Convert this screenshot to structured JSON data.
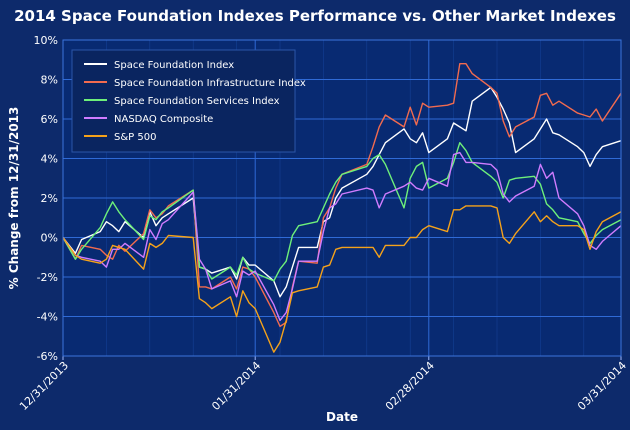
{
  "chart_data": {
    "type": "line",
    "title": "2014 Space Foundation Indexes Performance vs. Other Market Indexes",
    "xlabel": "Date",
    "ylabel": "% Change from 12/31/2013",
    "xlim": [
      "2013-12-31",
      "2014-03-31"
    ],
    "ylim": [
      -6,
      10
    ],
    "yticks": [
      -6,
      -4,
      -2,
      0,
      2,
      4,
      6,
      8,
      10
    ],
    "ytick_labels": [
      "-6%",
      "-4%",
      "-2%",
      "0%",
      "2%",
      "4%",
      "6%",
      "8%",
      "10%"
    ],
    "xticks": [
      "2013-12-31",
      "2014-01-31",
      "2014-02-28",
      "2014-03-31"
    ],
    "xtick_labels": [
      "12/31/2013",
      "01/31/2014",
      "02/28/2014",
      "03/31/2014"
    ],
    "grid": true,
    "legend_position": "top-left",
    "background_color": "#0d2a6b",
    "plot_color": "#082a72",
    "grid_color": "#2f6ad6",
    "x": [
      "2013-12-31",
      "2014-01-02",
      "2014-01-03",
      "2014-01-06",
      "2014-01-07",
      "2014-01-08",
      "2014-01-09",
      "2014-01-10",
      "2014-01-13",
      "2014-01-14",
      "2014-01-15",
      "2014-01-16",
      "2014-01-17",
      "2014-01-21",
      "2014-01-22",
      "2014-01-23",
      "2014-01-24",
      "2014-01-27",
      "2014-01-28",
      "2014-01-29",
      "2014-01-30",
      "2014-01-31",
      "2014-02-03",
      "2014-02-04",
      "2014-02-05",
      "2014-02-06",
      "2014-02-07",
      "2014-02-10",
      "2014-02-11",
      "2014-02-12",
      "2014-02-13",
      "2014-02-14",
      "2014-02-18",
      "2014-02-19",
      "2014-02-20",
      "2014-02-21",
      "2014-02-24",
      "2014-02-25",
      "2014-02-26",
      "2014-02-27",
      "2014-02-28",
      "2014-03-03",
      "2014-03-04",
      "2014-03-05",
      "2014-03-06",
      "2014-03-07",
      "2014-03-10",
      "2014-03-11",
      "2014-03-12",
      "2014-03-13",
      "2014-03-14",
      "2014-03-17",
      "2014-03-18",
      "2014-03-19",
      "2014-03-20",
      "2014-03-21",
      "2014-03-24",
      "2014-03-25",
      "2014-03-26",
      "2014-03-27",
      "2014-03-28",
      "2014-03-31"
    ],
    "series": [
      {
        "name": "Space Foundation Index",
        "color": "#ffffff",
        "values": [
          0,
          -0.8,
          -0.1,
          0.3,
          0.8,
          0.6,
          0.3,
          0.8,
          0,
          1.3,
          0.6,
          1.0,
          1.2,
          2.0,
          -1.5,
          -1.6,
          -1.8,
          -1.5,
          -2.1,
          -1.0,
          -1.4,
          -1.4,
          -2.2,
          -3.0,
          -2.5,
          -1.5,
          -0.5,
          -0.5,
          0.8,
          1.0,
          2.0,
          2.5,
          3.2,
          3.6,
          4.2,
          4.8,
          5.5,
          5.0,
          4.8,
          5.3,
          4.3,
          5.0,
          5.8,
          5.6,
          5.4,
          6.9,
          7.6,
          7.1,
          6.5,
          5.8,
          4.3,
          5.0,
          5.5,
          6.0,
          5.3,
          5.2,
          4.6,
          4.3,
          3.6,
          4.2,
          4.6,
          4.9
        ]
      },
      {
        "name": "Space Foundation Infrastructure Index",
        "color": "#f26b4f",
        "values": [
          0,
          -1.1,
          -0.4,
          -0.6,
          -0.9,
          -1.1,
          -0.4,
          -0.7,
          0.2,
          1.4,
          1.0,
          1.2,
          1.6,
          2.4,
          -2.5,
          -2.5,
          -2.6,
          -2.0,
          -2.6,
          -1.5,
          -1.6,
          -2.0,
          -3.8,
          -4.5,
          -4.3,
          -2.5,
          -1.2,
          -1.3,
          1.0,
          1.5,
          2.5,
          3.2,
          3.7,
          4.6,
          5.6,
          6.2,
          5.6,
          6.6,
          5.7,
          6.8,
          6.6,
          6.7,
          6.8,
          8.8,
          8.8,
          8.3,
          7.6,
          7.3,
          5.9,
          5.1,
          5.6,
          6.1,
          7.2,
          7.3,
          6.7,
          6.9,
          6.3,
          6.2,
          6.1,
          6.5,
          5.9,
          7.3
        ]
      },
      {
        "name": "Space Foundation Services Index",
        "color": "#6ef07a",
        "values": [
          0,
          -1.1,
          -0.6,
          0.5,
          1.2,
          1.8,
          1.3,
          0.9,
          -0.1,
          1.1,
          0.9,
          1.3,
          1.5,
          2.4,
          -1.5,
          -1.6,
          -2.1,
          -1.5,
          -1.9,
          -1.0,
          -1.6,
          -1.8,
          -2.2,
          -1.6,
          -1.2,
          0.1,
          0.6,
          0.8,
          1.5,
          2.2,
          2.8,
          3.2,
          3.6,
          4.0,
          4.2,
          3.7,
          1.5,
          3.0,
          3.6,
          3.8,
          2.5,
          3.0,
          3.8,
          4.8,
          4.4,
          3.8,
          3.1,
          2.8,
          2.0,
          2.9,
          3.0,
          3.1,
          2.7,
          1.7,
          1.4,
          1.0,
          0.8,
          0.2,
          -0.3,
          0.1,
          0.4,
          0.9
        ]
      },
      {
        "name": "NASDAQ Composite",
        "color": "#d07cff",
        "values": [
          0,
          -0.9,
          -1.0,
          -1.2,
          -1.5,
          -0.6,
          -0.6,
          -0.3,
          -1.0,
          0.4,
          -0.1,
          0.7,
          0.9,
          2.3,
          -1.1,
          -1.6,
          -2.6,
          -2.2,
          -3.0,
          -1.7,
          -1.9,
          -1.7,
          -3.4,
          -4.2,
          -3.8,
          -2.6,
          -1.2,
          -1.2,
          0.3,
          1.5,
          1.7,
          2.2,
          2.5,
          2.4,
          1.5,
          2.2,
          2.6,
          2.8,
          2.5,
          2.4,
          3.0,
          2.6,
          4.2,
          4.3,
          3.8,
          3.8,
          3.7,
          3.4,
          2.2,
          1.8,
          2.1,
          2.6,
          3.7,
          3.0,
          3.3,
          2.0,
          1.2,
          0.6,
          -0.4,
          -0.6,
          -0.2,
          0.6
        ]
      },
      {
        "name": "S&P 500",
        "color": "#f5a21a",
        "values": [
          0,
          -0.9,
          -1.1,
          -1.3,
          -1.1,
          -0.4,
          -0.5,
          -0.6,
          -1.6,
          -0.3,
          -0.5,
          -0.3,
          0.1,
          0,
          -3.1,
          -3.3,
          -3.6,
          -3.0,
          -4.0,
          -2.7,
          -3.3,
          -3.6,
          -5.8,
          -5.3,
          -4.2,
          -2.8,
          -2.7,
          -2.5,
          -1.5,
          -1.4,
          -0.6,
          -0.5,
          -0.5,
          -0.5,
          -1.0,
          -0.4,
          -0.4,
          0,
          0,
          0.4,
          0.6,
          0.3,
          1.4,
          1.4,
          1.6,
          1.6,
          1.6,
          1.5,
          0,
          -0.3,
          0.2,
          1.3,
          0.8,
          1.1,
          0.8,
          0.6,
          0.6,
          0.4,
          -0.6,
          0.3,
          0.8,
          1.3
        ]
      }
    ]
  }
}
